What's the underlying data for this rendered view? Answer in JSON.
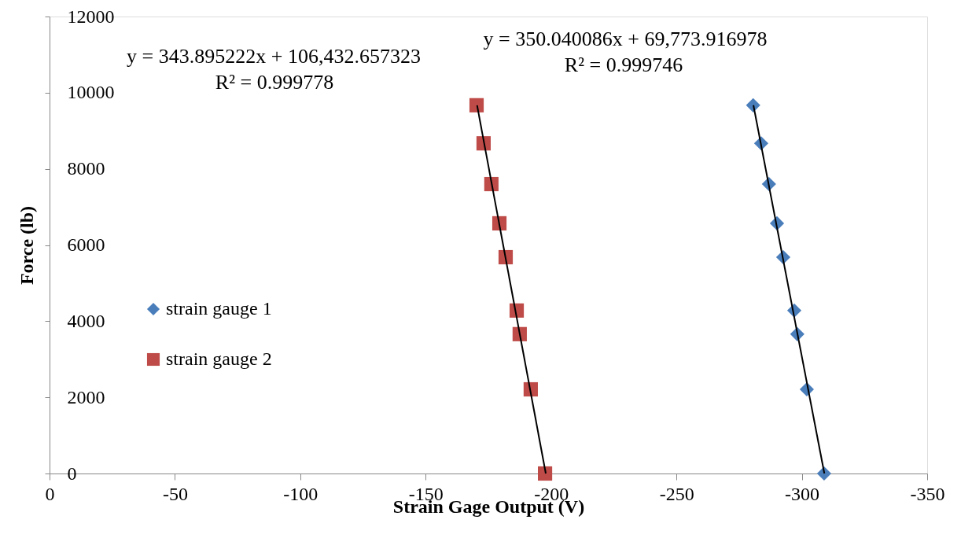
{
  "chart_data": {
    "type": "scatter",
    "xlabel": "Strain Gage Output (V)",
    "ylabel": "Force (lb)",
    "xlim": [
      0,
      -350
    ],
    "xticks": [
      0,
      -50,
      -100,
      -150,
      -200,
      -250,
      -300,
      -350
    ],
    "ylim": [
      0,
      12000
    ],
    "yticks": [
      0,
      2000,
      4000,
      6000,
      8000,
      10000,
      12000
    ],
    "grid": false,
    "legend": "left",
    "series": [
      {
        "name": "strain gauge 1",
        "color": "#4a7ebb",
        "marker": "diamond",
        "x": [
          -280.6,
          -283.8,
          -286.9,
          -290.1,
          -292.6,
          -297.0,
          -298.2,
          -302.0,
          -308.9
        ],
        "values": [
          9670,
          8670,
          7600,
          6570,
          5680,
          4280,
          3660,
          2210,
          0
        ]
      },
      {
        "name": "strain gauge 2",
        "color": "#be4b48",
        "marker": "square",
        "x": [
          -170.3,
          -173.1,
          -176.2,
          -179.4,
          -181.9,
          -186.3,
          -187.5,
          -191.9,
          -197.6
        ],
        "values": [
          9670,
          8670,
          7600,
          6570,
          5680,
          4280,
          3660,
          2210,
          0
        ]
      },
      {
        "type": "line",
        "color": "#000000",
        "x": [
          -280.7,
          -309.0
        ],
        "values": [
          9670,
          0
        ]
      },
      {
        "type": "line",
        "color": "#000000",
        "x": [
          -170.5,
          -197.9
        ],
        "values": [
          9670,
          0
        ]
      }
    ],
    "annotations": [
      "y = 343.895222x + 106,432.657323",
      "R² = 0.999778",
      "y = 350.040086x + 69,773.916978",
      "R² = 0.999746"
    ]
  }
}
